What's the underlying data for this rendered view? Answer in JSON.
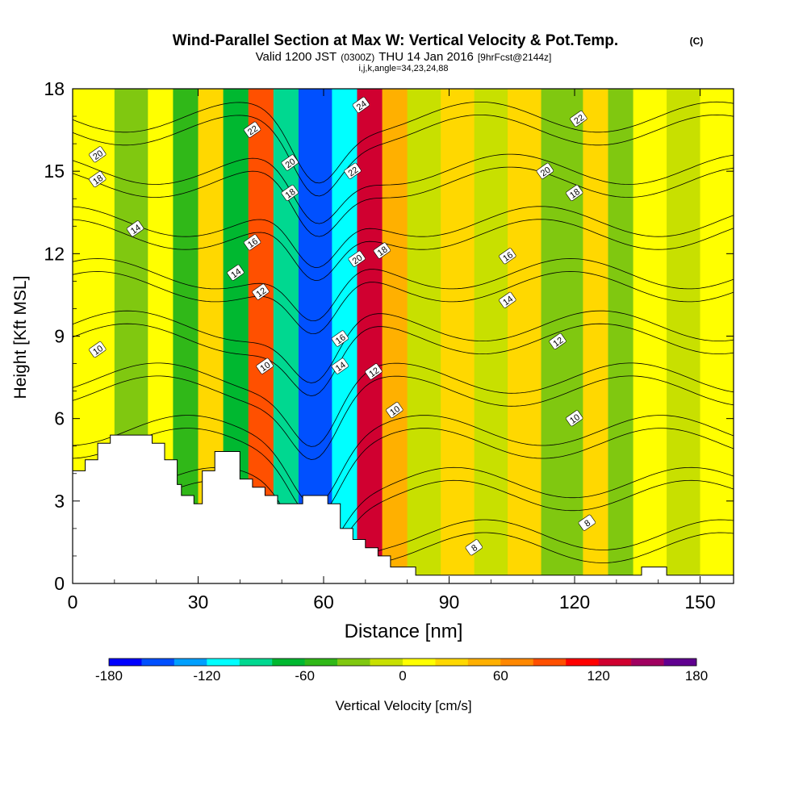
{
  "header": {
    "title": "Wind-Parallel Section at Max W: Vertical Velocity & Pot.Temp.",
    "copyright": "(C)",
    "valid_prefix": "Valid 1200 JST",
    "valid_zulu": "(0300Z)",
    "valid_date": "THU 14 Jan 2016",
    "forecast": "[9hrFcst@2144z]",
    "indices": "i,j,k,angle=34,23,24,88"
  },
  "chart_data": {
    "type": "heatmap",
    "xlabel": "Distance [nm]",
    "ylabel": "Height [Kft MSL]",
    "xlim": [
      0,
      158
    ],
    "ylim": [
      0,
      18
    ],
    "x_ticks": [
      0,
      30,
      60,
      90,
      120,
      150
    ],
    "y_ticks": [
      0,
      3,
      6,
      9,
      12,
      15,
      18
    ],
    "colorbar": {
      "label": "Vertical Velocity [cm/s]",
      "range": [
        -180,
        180
      ],
      "tick_values": [
        -180,
        -120,
        -60,
        0,
        60,
        120,
        180
      ],
      "colors": [
        "#0000ff",
        "#0050ff",
        "#00a0ff",
        "#00ffff",
        "#00d890",
        "#00b830",
        "#30b818",
        "#80c810",
        "#c8e000",
        "#ffff00",
        "#ffd800",
        "#ffb000",
        "#ff8800",
        "#ff5000",
        "#ff0000",
        "#d00030",
        "#a00060",
        "#600090"
      ]
    },
    "velocity_bands": [
      {
        "x": [
          0,
          10
        ],
        "value": 5
      },
      {
        "x": [
          10,
          18
        ],
        "value": -30
      },
      {
        "x": [
          18,
          24
        ],
        "value": 10
      },
      {
        "x": [
          24,
          30
        ],
        "value": -45
      },
      {
        "x": [
          30,
          36
        ],
        "value": 20
      },
      {
        "x": [
          36,
          42
        ],
        "value": -70
      },
      {
        "x": [
          42,
          48
        ],
        "value": 90
      },
      {
        "x": [
          48,
          54
        ],
        "value": -100
      },
      {
        "x": [
          54,
          62
        ],
        "value": -160
      },
      {
        "x": [
          62,
          68
        ],
        "value": -120
      },
      {
        "x": [
          68,
          74
        ],
        "value": 130
      },
      {
        "x": [
          74,
          80
        ],
        "value": 50
      },
      {
        "x": [
          80,
          88
        ],
        "value": -20
      },
      {
        "x": [
          88,
          96
        ],
        "value": 30
      },
      {
        "x": [
          96,
          104
        ],
        "value": -15
      },
      {
        "x": [
          104,
          112
        ],
        "value": 20
      },
      {
        "x": [
          112,
          122
        ],
        "value": -30
      },
      {
        "x": [
          122,
          128
        ],
        "value": 25
      },
      {
        "x": [
          128,
          134
        ],
        "value": -40
      },
      {
        "x": [
          134,
          142
        ],
        "value": 10
      },
      {
        "x": [
          142,
          150
        ],
        "value": -10
      },
      {
        "x": [
          150,
          158
        ],
        "value": 15
      }
    ],
    "terrain": [
      [
        0,
        4.1
      ],
      [
        3,
        4.1
      ],
      [
        3,
        4.5
      ],
      [
        6,
        4.5
      ],
      [
        6,
        5.1
      ],
      [
        9,
        5.1
      ],
      [
        9,
        5.4
      ],
      [
        19,
        5.4
      ],
      [
        19,
        5.1
      ],
      [
        22,
        5.1
      ],
      [
        22,
        4.5
      ],
      [
        25,
        4.5
      ],
      [
        25,
        3.6
      ],
      [
        26,
        3.6
      ],
      [
        26,
        3.2
      ],
      [
        29,
        3.2
      ],
      [
        29,
        2.9
      ],
      [
        31,
        2.9
      ],
      [
        31,
        4.1
      ],
      [
        34,
        4.1
      ],
      [
        34,
        4.8
      ],
      [
        40,
        4.8
      ],
      [
        40,
        3.8
      ],
      [
        43,
        3.8
      ],
      [
        43,
        3.5
      ],
      [
        46,
        3.5
      ],
      [
        46,
        3.2
      ],
      [
        49,
        3.2
      ],
      [
        49,
        2.9
      ],
      [
        55,
        2.9
      ],
      [
        55,
        3.2
      ],
      [
        61,
        3.2
      ],
      [
        61,
        2.9
      ],
      [
        64,
        2.9
      ],
      [
        64,
        2.0
      ],
      [
        67,
        2.0
      ],
      [
        67,
        1.6
      ],
      [
        70,
        1.6
      ],
      [
        70,
        1.3
      ],
      [
        73,
        1.3
      ],
      [
        73,
        1.0
      ],
      [
        76,
        1.0
      ],
      [
        76,
        0.6
      ],
      [
        82,
        0.6
      ],
      [
        82,
        0.3
      ],
      [
        88,
        0.3
      ],
      [
        136,
        0.3
      ],
      [
        136,
        0.6
      ],
      [
        142,
        0.6
      ],
      [
        142,
        0.3
      ],
      [
        158,
        0.3
      ],
      [
        158,
        0
      ],
      [
        0,
        0
      ]
    ],
    "isentropes": [
      {
        "value": 8,
        "label_at": [
          96,
          1.3
        ]
      },
      {
        "value": 8,
        "label_at": [
          123,
          2.2
        ]
      },
      {
        "value": 10,
        "label_at": [
          6,
          8.5
        ]
      },
      {
        "value": 10,
        "label_at": [
          46,
          7.9
        ]
      },
      {
        "value": 10,
        "label_at": [
          77,
          6.3
        ]
      },
      {
        "value": 10,
        "label_at": [
          120,
          6.0
        ]
      },
      {
        "value": 12,
        "label_at": [
          45,
          10.6
        ]
      },
      {
        "value": 12,
        "label_at": [
          72,
          7.7
        ]
      },
      {
        "value": 12,
        "label_at": [
          116,
          8.8
        ]
      },
      {
        "value": 14,
        "label_at": [
          15,
          12.9
        ]
      },
      {
        "value": 14,
        "label_at": [
          39,
          11.3
        ]
      },
      {
        "value": 14,
        "label_at": [
          64,
          7.9
        ]
      },
      {
        "value": 14,
        "label_at": [
          104,
          10.3
        ]
      },
      {
        "value": 16,
        "label_at": [
          43,
          12.4
        ]
      },
      {
        "value": 16,
        "label_at": [
          64,
          8.9
        ]
      },
      {
        "value": 16,
        "label_at": [
          104,
          11.9
        ]
      },
      {
        "value": 18,
        "label_at": [
          6,
          14.7
        ]
      },
      {
        "value": 18,
        "label_at": [
          52,
          14.2
        ]
      },
      {
        "value": 18,
        "label_at": [
          74,
          12.1
        ]
      },
      {
        "value": 18,
        "label_at": [
          120,
          14.2
        ]
      },
      {
        "value": 20,
        "label_at": [
          6,
          15.6
        ]
      },
      {
        "value": 20,
        "label_at": [
          52,
          15.3
        ]
      },
      {
        "value": 20,
        "label_at": [
          68,
          11.8
        ]
      },
      {
        "value": 20,
        "label_at": [
          113,
          15.0
        ]
      },
      {
        "value": 22,
        "label_at": [
          43,
          16.5
        ]
      },
      {
        "value": 22,
        "label_at": [
          67,
          15.0
        ]
      },
      {
        "value": 22,
        "label_at": [
          121,
          16.9
        ]
      },
      {
        "value": 24,
        "label_at": [
          69,
          17.4
        ]
      }
    ]
  }
}
